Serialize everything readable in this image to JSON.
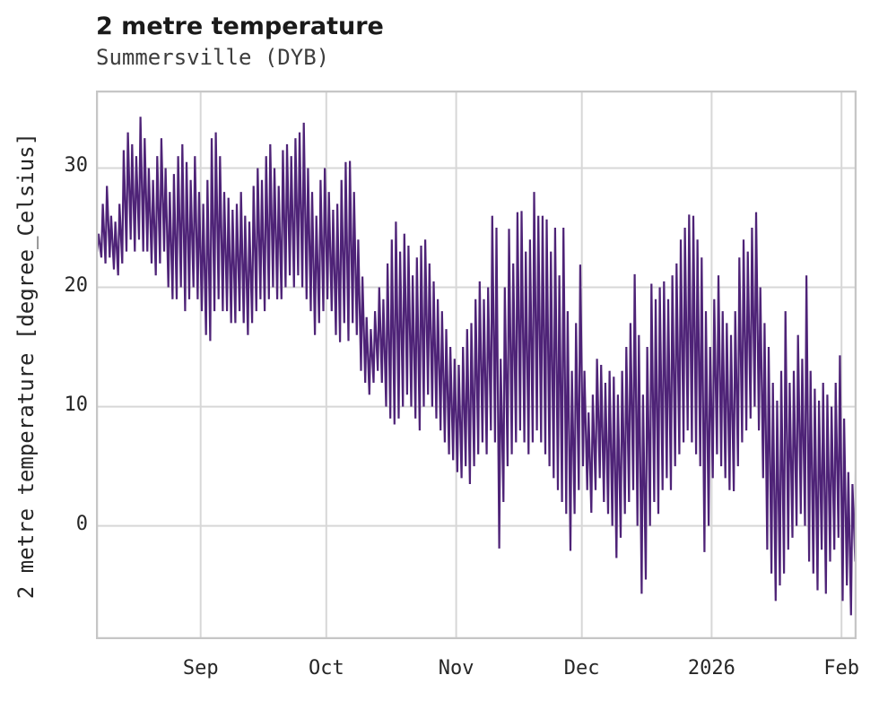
{
  "chart_data": {
    "type": "line",
    "title": "2 metre temperature",
    "subtitle": "Summersville (DYB)",
    "xlabel": "",
    "ylabel": "2 metre temperature [degree_Celsius]",
    "legend": null,
    "grid": true,
    "line_color": "#4e2377",
    "grid_color": "#d7d7d7",
    "spine_color": "#c6c6c6",
    "text_color": "#262626",
    "ylim": [
      -9.5,
      36.5
    ],
    "y_ticks": [
      0,
      10,
      20,
      30
    ],
    "x_unit": "day_index_from_series_start",
    "xlim_days": [
      0,
      181.6
    ],
    "x_ticks": [
      {
        "day": 25,
        "label": "Sep"
      },
      {
        "day": 55,
        "label": "Oct"
      },
      {
        "day": 86,
        "label": "Nov"
      },
      {
        "day": 116,
        "label": "Dec"
      },
      {
        "day": 147,
        "label": "2026"
      },
      {
        "day": 178,
        "label": "Feb"
      }
    ],
    "series": [
      {
        "name": "2 metre temperature",
        "sampling": "two points per day: morning minimum then afternoon maximum",
        "daily_min_max": [
          [
            23,
            24.5
          ],
          [
            22.5,
            27
          ],
          [
            22,
            28.5
          ],
          [
            22.5,
            26
          ],
          [
            21.5,
            25.5
          ],
          [
            21,
            27
          ],
          [
            22,
            31.5
          ],
          [
            23,
            33
          ],
          [
            24,
            32
          ],
          [
            23,
            31
          ],
          [
            24,
            34.3
          ],
          [
            23,
            32.5
          ],
          [
            23,
            30
          ],
          [
            22,
            29
          ],
          [
            21,
            31
          ],
          [
            22,
            32.5
          ],
          [
            23,
            30
          ],
          [
            20,
            28
          ],
          [
            19,
            29.5
          ],
          [
            19,
            31
          ],
          [
            20,
            32
          ],
          [
            18,
            30.5
          ],
          [
            19,
            29
          ],
          [
            20,
            31
          ],
          [
            19,
            28
          ],
          [
            18,
            27
          ],
          [
            16,
            29
          ],
          [
            15.5,
            32.5
          ],
          [
            18,
            33
          ],
          [
            19,
            31
          ],
          [
            18,
            28
          ],
          [
            18,
            27.5
          ],
          [
            17,
            26.5
          ],
          [
            17,
            27
          ],
          [
            18,
            28
          ],
          [
            17,
            26
          ],
          [
            16,
            25.5
          ],
          [
            17,
            28.5
          ],
          [
            18,
            30
          ],
          [
            19,
            29
          ],
          [
            18,
            31
          ],
          [
            19,
            32
          ],
          [
            20,
            30
          ],
          [
            19,
            28.5
          ],
          [
            19,
            31.5
          ],
          [
            20,
            32
          ],
          [
            21,
            31
          ],
          [
            20,
            32.5
          ],
          [
            21,
            33
          ],
          [
            20,
            33.8
          ],
          [
            19,
            30
          ],
          [
            18,
            28
          ],
          [
            16,
            26
          ],
          [
            17,
            29
          ],
          [
            18,
            30
          ],
          [
            19,
            28
          ],
          [
            18,
            26.5
          ],
          [
            16,
            27
          ],
          [
            15.4,
            29
          ],
          [
            17,
            30.5
          ],
          [
            15.5,
            30.6
          ],
          [
            17,
            28
          ],
          [
            16,
            24
          ],
          [
            13,
            20.9
          ],
          [
            12,
            17.5
          ],
          [
            11,
            16.5
          ],
          [
            12,
            18
          ],
          [
            13,
            20
          ],
          [
            12,
            19
          ],
          [
            10,
            22
          ],
          [
            9,
            24
          ],
          [
            8.5,
            25.5
          ],
          [
            9,
            23
          ],
          [
            10,
            24.5
          ],
          [
            11,
            23.5
          ],
          [
            10,
            21
          ],
          [
            9,
            22.5
          ],
          [
            8,
            23.5
          ],
          [
            10,
            24
          ],
          [
            11,
            22
          ],
          [
            10,
            20.5
          ],
          [
            9,
            19
          ],
          [
            8,
            18
          ],
          [
            7,
            16.5
          ],
          [
            6,
            15
          ],
          [
            5.5,
            14
          ],
          [
            4.5,
            13.5
          ],
          [
            4,
            15
          ],
          [
            5,
            16.5
          ],
          [
            3.5,
            17
          ],
          [
            5,
            19
          ],
          [
            6,
            20.5
          ],
          [
            7,
            19
          ],
          [
            6,
            20
          ],
          [
            8,
            26
          ],
          [
            7,
            25
          ],
          [
            -1.9,
            14
          ],
          [
            2,
            20
          ],
          [
            5,
            24.9
          ],
          [
            6,
            22
          ],
          [
            7,
            26.3
          ],
          [
            8,
            26.4
          ],
          [
            7,
            23
          ],
          [
            6,
            24
          ],
          [
            7,
            28
          ],
          [
            8,
            26
          ],
          [
            7,
            26
          ],
          [
            6,
            25.7
          ],
          [
            5,
            23
          ],
          [
            4,
            25
          ],
          [
            3,
            21
          ],
          [
            2,
            25
          ],
          [
            1,
            18
          ],
          [
            -2.1,
            13
          ],
          [
            1,
            17
          ],
          [
            3,
            21.9
          ],
          [
            5,
            13
          ],
          [
            3,
            9.5
          ],
          [
            1.1,
            11
          ],
          [
            3,
            14
          ],
          [
            4,
            13.5
          ],
          [
            2,
            12
          ],
          [
            1,
            13
          ],
          [
            0,
            12.5
          ],
          [
            -2.7,
            11
          ],
          [
            -1,
            13
          ],
          [
            1,
            15
          ],
          [
            2,
            17
          ],
          [
            3,
            21.1
          ],
          [
            0,
            16
          ],
          [
            -5.7,
            11
          ],
          [
            -4.5,
            15
          ],
          [
            0,
            20.3
          ],
          [
            2,
            19
          ],
          [
            1,
            20
          ],
          [
            3,
            20.5
          ],
          [
            4,
            19
          ],
          [
            3,
            21
          ],
          [
            5,
            22
          ],
          [
            6,
            24
          ],
          [
            7,
            25
          ],
          [
            8,
            26.1
          ],
          [
            7,
            26
          ],
          [
            6,
            24
          ],
          [
            5,
            22.5
          ],
          [
            -2.2,
            18
          ],
          [
            0,
            15
          ],
          [
            4,
            19
          ],
          [
            6,
            21
          ],
          [
            5,
            18
          ],
          [
            4,
            17
          ],
          [
            3,
            16
          ],
          [
            2.9,
            18
          ],
          [
            5,
            22.5
          ],
          [
            7,
            24
          ],
          [
            8,
            23
          ],
          [
            9,
            25
          ],
          [
            10,
            26.3
          ],
          [
            8,
            20
          ],
          [
            4,
            17
          ],
          [
            -2,
            15
          ],
          [
            -4,
            12
          ],
          [
            -6.3,
            10.5
          ],
          [
            -5,
            13
          ],
          [
            -4,
            18
          ],
          [
            -2,
            12
          ],
          [
            -1,
            13
          ],
          [
            0,
            16
          ],
          [
            1,
            14
          ],
          [
            0,
            21
          ],
          [
            -3,
            13
          ],
          [
            -4,
            11.5
          ],
          [
            -5.4,
            10.5
          ],
          [
            -2,
            12
          ],
          [
            -5.7,
            11
          ],
          [
            -3,
            10
          ],
          [
            -2,
            12
          ],
          [
            -1,
            14.3
          ],
          [
            -6.3,
            9
          ],
          [
            -5,
            4.5
          ],
          [
            -7.5,
            3.5
          ],
          [
            -3,
            16.1
          ]
        ]
      }
    ]
  }
}
